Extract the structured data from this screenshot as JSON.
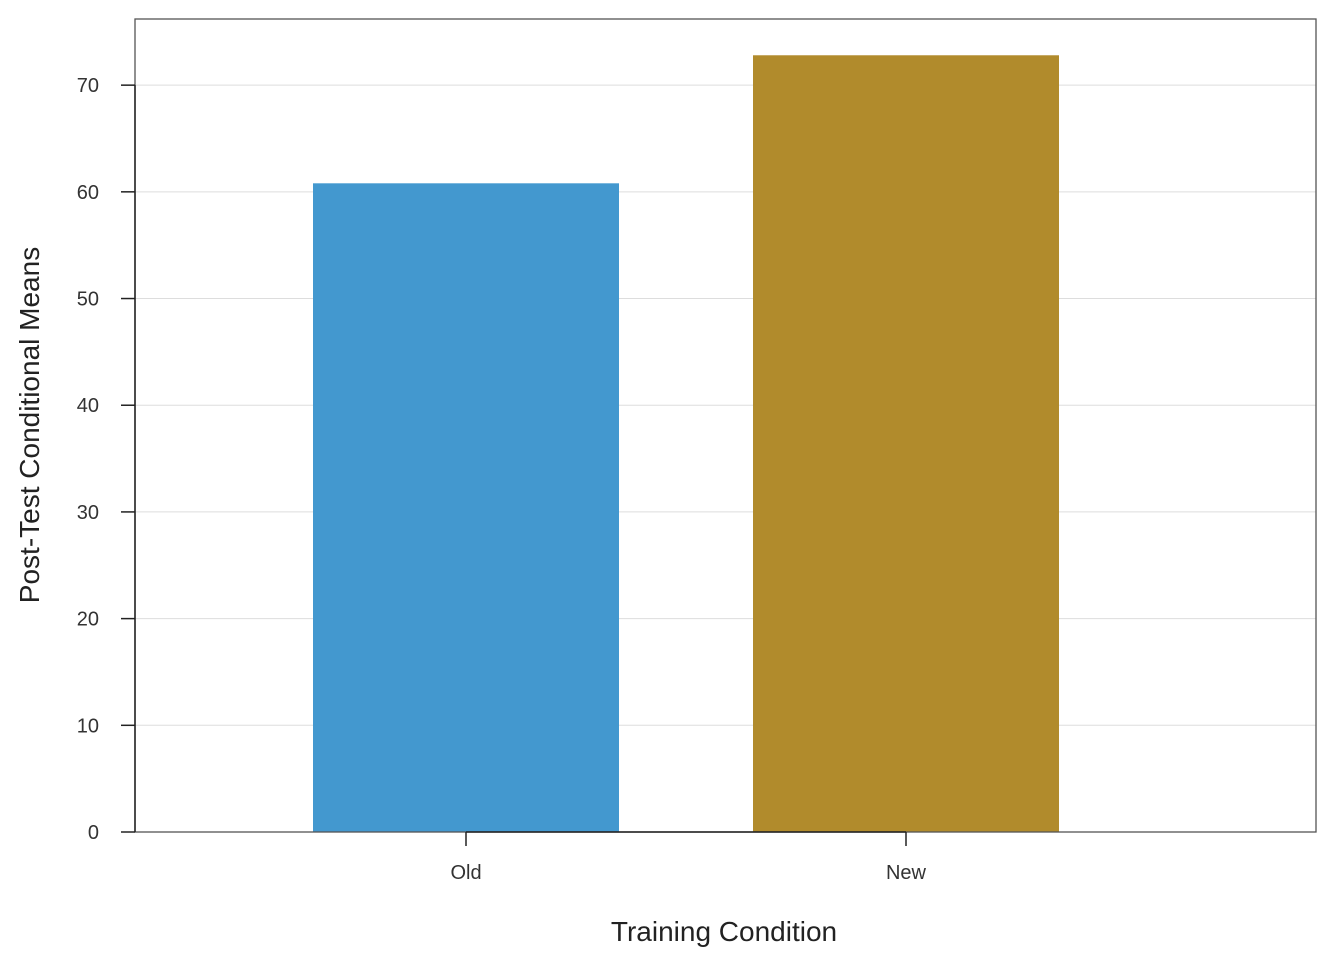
{
  "chart_data": {
    "type": "bar",
    "categories": [
      "Old",
      "New"
    ],
    "values": [
      60.8,
      72.8
    ],
    "xlabel": "Training Condition",
    "ylabel": "Post-Test Conditional Means",
    "ylim": [
      0,
      76.2
    ],
    "yticks": [
      0,
      10,
      20,
      30,
      40,
      50,
      60,
      70
    ],
    "grid": true,
    "legend": "none",
    "colors": [
      "#4398CF",
      "#B18B2C"
    ]
  }
}
